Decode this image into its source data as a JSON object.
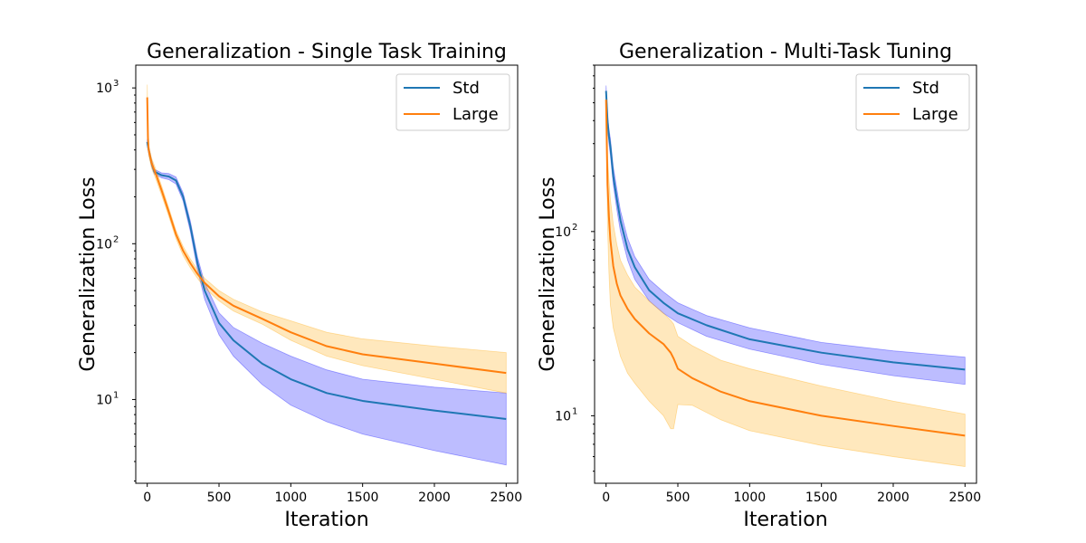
{
  "chart_data": [
    {
      "type": "line",
      "title": "Generalization - Single Task Training",
      "xlabel": "Iteration",
      "ylabel": "Generalization Loss",
      "yscale": "log",
      "xlim": [
        -80,
        2580
      ],
      "ylim": [
        2.9,
        1400
      ],
      "xticks": [
        0,
        500,
        1000,
        1500,
        2000,
        2500
      ],
      "xtick_labels": [
        "0",
        "500",
        "1000",
        "1500",
        "2000",
        "2500"
      ],
      "yticks": [
        {
          "base": "10",
          "exp": "1",
          "value": 10
        },
        {
          "base": "10",
          "exp": "2",
          "value": 100
        },
        {
          "base": "10",
          "exp": "3",
          "value": 1000
        }
      ],
      "legend_position": "upper right",
      "series": [
        {
          "name": "Std",
          "color": "#1f77b4",
          "band_color": "#0000ff",
          "band_opacity": 0.26,
          "x": [
            0,
            10,
            30,
            50,
            100,
            150,
            200,
            250,
            300,
            350,
            400,
            500,
            600,
            800,
            1000,
            1250,
            1500,
            2000,
            2500
          ],
          "y": [
            450,
            400,
            330,
            290,
            275,
            270,
            255,
            200,
            130,
            75,
            50,
            31,
            24,
            17,
            13.5,
            11,
            9.8,
            8.5,
            7.5
          ],
          "lower": [
            430,
            380,
            315,
            280,
            265,
            258,
            242,
            188,
            120,
            68,
            44,
            26,
            19,
            12.5,
            9.2,
            7.2,
            6.0,
            4.7,
            3.8
          ],
          "upper": [
            470,
            420,
            345,
            300,
            285,
            282,
            268,
            212,
            140,
            82,
            56,
            36,
            29,
            23,
            19,
            15.5,
            13.5,
            12,
            11
          ]
        },
        {
          "name": "Large",
          "color": "#ff7f0e",
          "band_color": "#ffa500",
          "band_opacity": 0.26,
          "x": [
            0,
            5,
            10,
            30,
            60,
            100,
            150,
            200,
            250,
            300,
            350,
            400,
            500,
            600,
            800,
            1000,
            1250,
            1500,
            2000,
            2500
          ],
          "y": [
            870,
            480,
            400,
            330,
            280,
            220,
            160,
            115,
            90,
            75,
            64,
            56,
            46,
            40,
            33,
            27,
            22,
            19.5,
            17,
            14.8
          ],
          "lower": [
            700,
            430,
            370,
            305,
            260,
            205,
            150,
            108,
            84,
            70,
            60,
            52,
            43,
            37,
            30.5,
            24,
            19,
            16.5,
            13.5,
            11
          ],
          "upper": [
            1050,
            530,
            430,
            355,
            300,
            235,
            170,
            122,
            96,
            80,
            68,
            60,
            50,
            44,
            36.5,
            32,
            27,
            24.5,
            22,
            20
          ]
        }
      ]
    },
    {
      "type": "line",
      "title": "Generalization - Multi-Task Tuning",
      "xlabel": "Iteration",
      "ylabel": "Generalization Loss",
      "yscale": "log",
      "xlim": [
        -80,
        2580
      ],
      "ylim": [
        4.3,
        800
      ],
      "xticks": [
        0,
        500,
        1000,
        1500,
        2000,
        2500
      ],
      "xtick_labels": [
        "0",
        "500",
        "1000",
        "1500",
        "2000",
        "2500"
      ],
      "yticks": [
        {
          "base": "10",
          "exp": "1",
          "value": 10
        },
        {
          "base": "10",
          "exp": "2",
          "value": 100
        }
      ],
      "legend_position": "upper right",
      "series": [
        {
          "name": "Std",
          "color": "#1f77b4",
          "band_color": "#0000ff",
          "band_opacity": 0.26,
          "x": [
            0,
            10,
            20,
            30,
            50,
            75,
            100,
            150,
            200,
            300,
            400,
            500,
            700,
            1000,
            1500,
            2000,
            2500
          ],
          "y": [
            580,
            400,
            330,
            290,
            200,
            150,
            115,
            80,
            64,
            48,
            41,
            36,
            31,
            26,
            22,
            19.5,
            17.8
          ],
          "lower": [
            560,
            370,
            300,
            260,
            180,
            132,
            100,
            70,
            55,
            42,
            36,
            32,
            27,
            23,
            19,
            16.5,
            14.8
          ],
          "upper": [
            620,
            430,
            360,
            320,
            225,
            170,
            130,
            92,
            73,
            55,
            47,
            41,
            35,
            30,
            25,
            22.5,
            20.8
          ]
        },
        {
          "name": "Large",
          "color": "#ff7f0e",
          "band_color": "#ffa500",
          "band_opacity": 0.26,
          "x": [
            0,
            10,
            20,
            30,
            50,
            75,
            100,
            150,
            200,
            300,
            400,
            450,
            470,
            500,
            600,
            800,
            1000,
            1500,
            2000,
            2500
          ],
          "y": [
            520,
            180,
            120,
            90,
            65,
            52,
            45,
            38,
            33.5,
            28,
            24.5,
            22,
            20.5,
            18,
            16,
            13.5,
            12,
            10,
            8.8,
            7.8
          ],
          "lower": [
            490,
            110,
            60,
            40,
            30,
            25,
            21,
            17,
            15,
            12,
            10,
            8.5,
            8.5,
            11.5,
            11.4,
            9.5,
            8.3,
            6.9,
            6.0,
            5.3
          ],
          "upper": [
            560,
            260,
            190,
            150,
            110,
            85,
            70,
            58,
            50,
            42,
            36,
            33,
            31.5,
            27,
            24,
            20,
            18,
            14.5,
            12,
            10.2
          ]
        }
      ]
    }
  ]
}
